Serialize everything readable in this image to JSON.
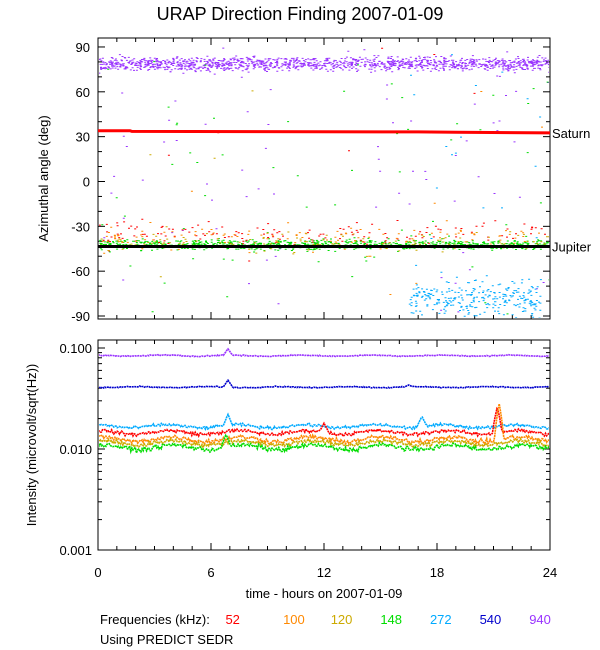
{
  "title": "URAP Direction Finding  2007-01-09",
  "chart_data": [
    {
      "type": "scatter",
      "name": "azimuth",
      "ylabel": "Azimuthal angle (deg)",
      "xlabel": "",
      "xlim": [
        0,
        24
      ],
      "ylim": [
        -92,
        96
      ],
      "yticks": [
        90,
        60,
        30,
        0,
        -30,
        -60,
        -90
      ],
      "xticks": [
        0,
        6,
        12,
        18,
        24
      ],
      "reference_lines": [
        {
          "name": "Saturn",
          "label": "Saturn",
          "color": "#ff0000",
          "points": [
            [
              0,
              34
            ],
            [
              1.7,
              34
            ],
            [
              1.8,
              33.5
            ],
            [
              17,
              33.2
            ],
            [
              19,
              33
            ],
            [
              24,
              32.5
            ]
          ]
        },
        {
          "name": "Jupiter",
          "label": "Jupiter",
          "color": "#000000",
          "points": [
            [
              0,
              -43.5
            ],
            [
              24,
              -43.5
            ]
          ]
        }
      ],
      "series": [
        {
          "freq": "940",
          "color": "#9933ff",
          "center": 79,
          "spread": 4,
          "density": 1400
        },
        {
          "freq": "148",
          "color": "#00dd00",
          "center": -42,
          "spread": 3,
          "density": 900
        },
        {
          "freq": "272",
          "color": "#00aaff",
          "center": -78,
          "spread": 10,
          "window": [
            16.5,
            23.5
          ],
          "density": 300
        },
        {
          "freq": "52",
          "color": "#ff0000",
          "center": -35,
          "spread": 7,
          "density": 160
        },
        {
          "freq": "100",
          "color": "#ff8800",
          "center": -38,
          "spread": 8,
          "density": 160
        },
        {
          "freq": "120",
          "color": "#ccaa00",
          "center": -40,
          "spread": 6,
          "density": 120
        }
      ]
    },
    {
      "type": "line",
      "name": "intensity",
      "ylabel": "Intensity (microvolt/sqrt(Hz))",
      "xlabel": "time - hours on 2007-01-09",
      "xlim": [
        0,
        24
      ],
      "ylim_log": [
        0.001,
        0.12
      ],
      "yticks": [
        {
          "value": 0.1,
          "label": "0.100"
        },
        {
          "value": 0.01,
          "label": "0.010"
        },
        {
          "value": 0.001,
          "label": "0.001"
        }
      ],
      "xticks": [
        0,
        6,
        12,
        18,
        24
      ],
      "series": [
        {
          "freq": "940",
          "color": "#9933ff",
          "level": 0.084,
          "noise": 0.02,
          "spikes": [
            [
              6.9,
              0.098
            ]
          ]
        },
        {
          "freq": "540",
          "color": "#0000cc",
          "level": 0.041,
          "noise": 0.02,
          "spikes": [
            [
              6.9,
              0.048
            ],
            [
              16.5,
              0.043
            ]
          ]
        },
        {
          "freq": "272",
          "color": "#00aaff",
          "level": 0.0168,
          "noise": 0.06,
          "spikes": [
            [
              6.9,
              0.022
            ],
            [
              17.2,
              0.021
            ]
          ]
        },
        {
          "freq": "52",
          "color": "#ff0000",
          "level": 0.0146,
          "noise": 0.07,
          "spikes": [
            [
              12,
              0.018
            ],
            [
              21.2,
              0.026
            ]
          ]
        },
        {
          "freq": "100",
          "color": "#ff8800",
          "level": 0.0125,
          "noise": 0.09,
          "spikes": [
            [
              21.3,
              0.028
            ]
          ]
        },
        {
          "freq": "120",
          "color": "#ccaa00",
          "level": 0.0115,
          "noise": 0.09,
          "spikes": []
        },
        {
          "freq": "148",
          "color": "#00dd00",
          "level": 0.0104,
          "noise": 0.09,
          "spikes": [
            [
              6.8,
              0.014
            ]
          ]
        }
      ]
    }
  ],
  "legend": {
    "label": "Frequencies (kHz):",
    "items": [
      {
        "text": "52",
        "color": "#ff0000"
      },
      {
        "text": "100",
        "color": "#ff8800"
      },
      {
        "text": "120",
        "color": "#ccaa00"
      },
      {
        "text": "148",
        "color": "#00dd00"
      },
      {
        "text": "272",
        "color": "#00aaff"
      },
      {
        "text": "540",
        "color": "#0000cc"
      },
      {
        "text": "940",
        "color": "#9933ff"
      }
    ]
  },
  "source_note": "Using PREDICT SEDR"
}
